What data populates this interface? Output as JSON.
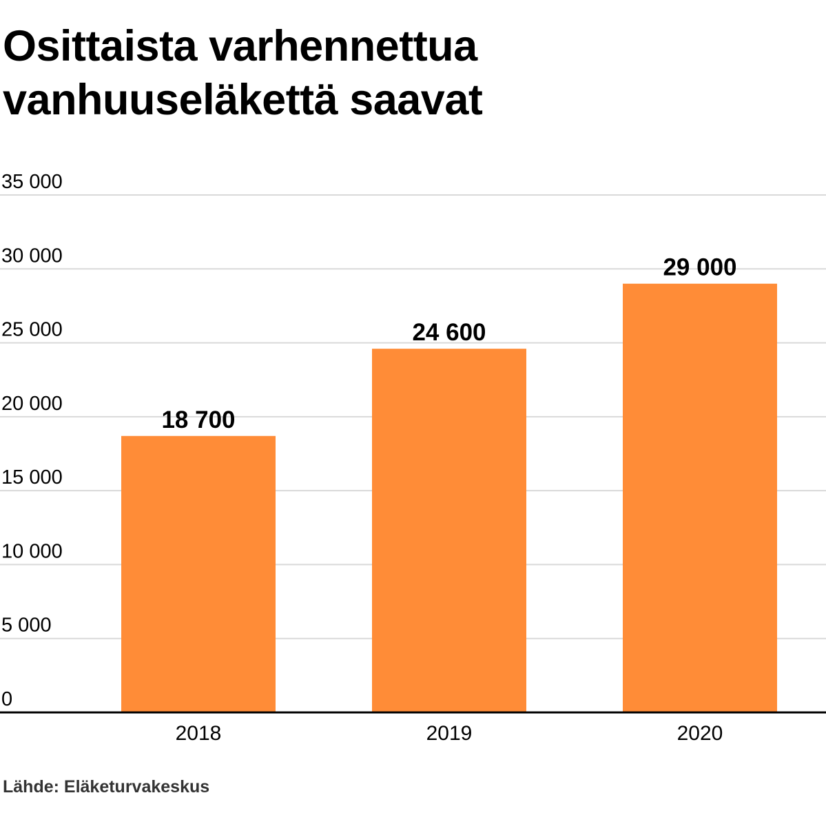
{
  "title_lines": [
    "Osittaista varhennettua",
    "vanhuuseläkettä saavat"
  ],
  "source": "Lähde: Eläketurvakeskus",
  "colors": {
    "bar": "#ff8c37",
    "grid": "#d9d9d9",
    "axis": "#000000",
    "text": "#000000"
  },
  "chart_data": {
    "type": "bar",
    "categories": [
      "2018",
      "2019",
      "2020"
    ],
    "values": [
      18700,
      24600,
      29000
    ],
    "data_labels": [
      "18 700",
      "24 600",
      "29 000"
    ],
    "ylim": [
      0,
      35000
    ],
    "yticks": [
      0,
      5000,
      10000,
      15000,
      20000,
      25000,
      30000,
      35000
    ],
    "ytick_labels": [
      "0",
      "5 000",
      "10 000",
      "15 000",
      "20 000",
      "25 000",
      "30 000",
      "35 000"
    ],
    "grid": true,
    "legend": "none",
    "xlabel": "",
    "ylabel": ""
  }
}
